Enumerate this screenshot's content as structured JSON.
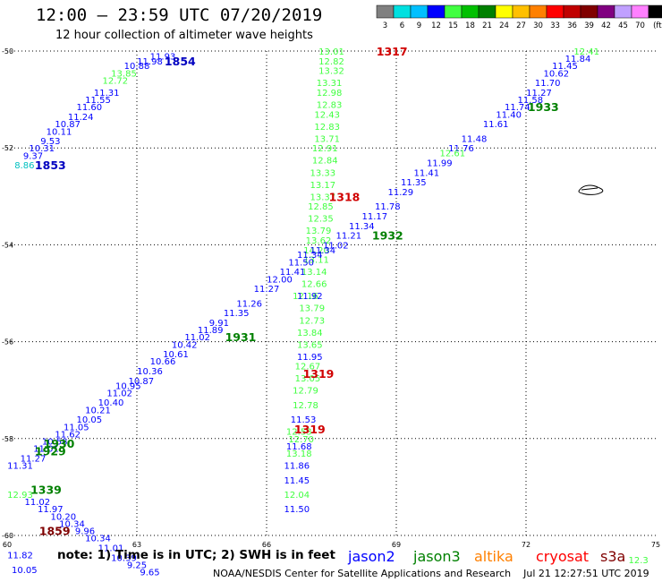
{
  "title": "12:00 – 23:59 UTC 07/20/2019",
  "subtitle": "12 hour collection of altimeter wave heights",
  "note": "note: 1) Time is in UTC; 2) SWH is in feet",
  "credit": "NOAA/NESDIS Center for Satellite Applications and Research    Jul 21 12:27:51 UTC 2019",
  "color_scale": {
    "labels": [
      "3",
      "6",
      "9",
      "12",
      "15",
      "18",
      "21",
      "24",
      "27",
      "30",
      "33",
      "36",
      "39",
      "42",
      "45",
      "70",
      "(ft)"
    ],
    "colors": [
      "#808080",
      "#00e0e0",
      "#00c0ff",
      "#0000ff",
      "#40ff40",
      "#00c000",
      "#008000",
      "#ffff00",
      "#ffc000",
      "#ff8000",
      "#ff0000",
      "#c00000",
      "#800000",
      "#800080",
      "#c0a0ff",
      "#ff80ff",
      "#000000"
    ]
  },
  "legend": [
    {
      "name": "jason2",
      "color": "#0000ff"
    },
    {
      "name": "jason3",
      "color": "#008000"
    },
    {
      "name": "altika",
      "color": "#ff8000"
    },
    {
      "name": "cryosat",
      "color": "#ff0000"
    },
    {
      "name": "s3a",
      "color": "#800000"
    }
  ],
  "chart_data": {
    "type": "scatter",
    "xlim": [
      60,
      75
    ],
    "ylim": [
      -60,
      -50
    ],
    "xticks": [
      60,
      63,
      66,
      69,
      72,
      75
    ],
    "yticks": [
      -50,
      -52,
      -54,
      -56,
      -58,
      -60
    ],
    "grid": true,
    "track_labels": [
      {
        "text": "1854",
        "x": 64.0,
        "y": -50.2,
        "color": "#0000c0"
      },
      {
        "text": "1853",
        "x": 61.0,
        "y": -52.35,
        "color": "#0000c0"
      },
      {
        "text": "1317",
        "x": 68.9,
        "y": -50.0,
        "color": "#d00000"
      },
      {
        "text": "1933",
        "x": 72.4,
        "y": -51.15,
        "color": "#008000"
      },
      {
        "text": "1318",
        "x": 67.8,
        "y": -53.0,
        "color": "#d00000"
      },
      {
        "text": "1932",
        "x": 68.8,
        "y": -53.8,
        "color": "#008000"
      },
      {
        "text": "1931",
        "x": 65.4,
        "y": -55.9,
        "color": "#008000"
      },
      {
        "text": "1319",
        "x": 67.2,
        "y": -56.65,
        "color": "#d00000"
      },
      {
        "text": "1319",
        "x": 67.0,
        "y": -57.8,
        "color": "#d00000"
      },
      {
        "text": "1930",
        "x": 61.2,
        "y": -58.1,
        "color": "#008000"
      },
      {
        "text": "1929",
        "x": 61.0,
        "y": -58.25,
        "color": "#008000"
      },
      {
        "text": "1339",
        "x": 60.9,
        "y": -59.05,
        "color": "#008000"
      },
      {
        "text": "1859",
        "x": 61.1,
        "y": -59.9,
        "color": "#800000"
      }
    ],
    "points": [
      {
        "x": 63.6,
        "y": -50.1,
        "v": "11.93",
        "c": "#0000ff"
      },
      {
        "x": 63.3,
        "y": -50.2,
        "v": "11.98",
        "c": "#0000ff"
      },
      {
        "x": 63.0,
        "y": -50.3,
        "v": "10.88",
        "c": "#0000ff"
      },
      {
        "x": 62.7,
        "y": -50.45,
        "v": "13.85",
        "c": "#40ff40"
      },
      {
        "x": 62.5,
        "y": -50.6,
        "v": "12.72",
        "c": "#40ff40"
      },
      {
        "x": 62.3,
        "y": -50.85,
        "v": "11.31",
        "c": "#0000ff"
      },
      {
        "x": 62.1,
        "y": -51.0,
        "v": "11.55",
        "c": "#0000ff"
      },
      {
        "x": 61.9,
        "y": -51.15,
        "v": "11.60",
        "c": "#0000ff"
      },
      {
        "x": 61.7,
        "y": -51.35,
        "v": "11.24",
        "c": "#0000ff"
      },
      {
        "x": 61.4,
        "y": -51.5,
        "v": "10.87",
        "c": "#0000ff"
      },
      {
        "x": 61.2,
        "y": -51.65,
        "v": "10.11",
        "c": "#0000ff"
      },
      {
        "x": 61.0,
        "y": -51.85,
        "v": "9.53",
        "c": "#0000ff"
      },
      {
        "x": 60.8,
        "y": -52.0,
        "v": "10.31",
        "c": "#0000ff"
      },
      {
        "x": 60.6,
        "y": -52.15,
        "v": "9.37",
        "c": "#0000ff"
      },
      {
        "x": 60.4,
        "y": -52.35,
        "v": "8.86",
        "c": "#00c0c0"
      },
      {
        "x": 67.5,
        "y": -50.0,
        "v": "13.01",
        "c": "#40ff40"
      },
      {
        "x": 67.5,
        "y": -50.2,
        "v": "12.82",
        "c": "#40ff40"
      },
      {
        "x": 67.5,
        "y": -50.4,
        "v": "13.32",
        "c": "#40ff40"
      },
      {
        "x": 67.45,
        "y": -50.65,
        "v": "13.31",
        "c": "#40ff40"
      },
      {
        "x": 67.45,
        "y": -50.85,
        "v": "12.98",
        "c": "#40ff40"
      },
      {
        "x": 67.45,
        "y": -51.1,
        "v": "12.83",
        "c": "#40ff40"
      },
      {
        "x": 67.4,
        "y": -51.3,
        "v": "12.43",
        "c": "#40ff40"
      },
      {
        "x": 67.4,
        "y": -51.55,
        "v": "12.83",
        "c": "#40ff40"
      },
      {
        "x": 67.4,
        "y": -51.8,
        "v": "13.71",
        "c": "#40ff40"
      },
      {
        "x": 67.35,
        "y": -52.0,
        "v": "12.91",
        "c": "#40ff40"
      },
      {
        "x": 67.35,
        "y": -52.25,
        "v": "12.84",
        "c": "#40ff40"
      },
      {
        "x": 67.3,
        "y": -52.5,
        "v": "13.33",
        "c": "#40ff40"
      },
      {
        "x": 67.3,
        "y": -52.75,
        "v": "13.17",
        "c": "#40ff40"
      },
      {
        "x": 67.3,
        "y": -53.0,
        "v": "13.37",
        "c": "#40ff40"
      },
      {
        "x": 67.25,
        "y": -53.2,
        "v": "12.85",
        "c": "#40ff40"
      },
      {
        "x": 67.25,
        "y": -53.45,
        "v": "12.35",
        "c": "#40ff40"
      },
      {
        "x": 67.2,
        "y": -53.7,
        "v": "13.79",
        "c": "#40ff40"
      },
      {
        "x": 67.2,
        "y": -53.9,
        "v": "13.62",
        "c": "#40ff40"
      },
      {
        "x": 67.15,
        "y": -54.1,
        "v": "14.20",
        "c": "#40ff40"
      },
      {
        "x": 67.15,
        "y": -54.3,
        "v": "13.11",
        "c": "#40ff40"
      },
      {
        "x": 67.1,
        "y": -54.55,
        "v": "13.14",
        "c": "#40ff40"
      },
      {
        "x": 67.1,
        "y": -54.8,
        "v": "12.66",
        "c": "#40ff40"
      },
      {
        "x": 66.9,
        "y": -55.05,
        "v": "12.16",
        "c": "#40ff40"
      },
      {
        "x": 67.05,
        "y": -55.3,
        "v": "13.79",
        "c": "#40ff40"
      },
      {
        "x": 67.05,
        "y": -55.55,
        "v": "12.73",
        "c": "#40ff40"
      },
      {
        "x": 67.0,
        "y": -55.8,
        "v": "13.84",
        "c": "#40ff40"
      },
      {
        "x": 67.0,
        "y": -56.05,
        "v": "13.65",
        "c": "#40ff40"
      },
      {
        "x": 66.95,
        "y": -56.5,
        "v": "12.67",
        "c": "#40ff40"
      },
      {
        "x": 66.95,
        "y": -56.75,
        "v": "13.05",
        "c": "#40ff40"
      },
      {
        "x": 66.9,
        "y": -57.0,
        "v": "12.79",
        "c": "#40ff40"
      },
      {
        "x": 66.9,
        "y": -57.3,
        "v": "12.78",
        "c": "#40ff40"
      },
      {
        "x": 66.75,
        "y": -57.85,
        "v": "12.53",
        "c": "#40ff40"
      },
      {
        "x": 66.8,
        "y": -58.0,
        "v": "12.70",
        "c": "#40ff40"
      },
      {
        "x": 66.75,
        "y": -58.3,
        "v": "13.18",
        "c": "#40ff40"
      },
      {
        "x": 66.7,
        "y": -59.15,
        "v": "12.04",
        "c": "#40ff40"
      },
      {
        "x": 66.85,
        "y": -57.6,
        "v": "11.53",
        "c": "#0000ff"
      },
      {
        "x": 66.75,
        "y": -58.15,
        "v": "11.68",
        "c": "#0000ff"
      },
      {
        "x": 66.7,
        "y": -58.55,
        "v": "11.86",
        "c": "#0000ff"
      },
      {
        "x": 66.7,
        "y": -58.85,
        "v": "11.45",
        "c": "#0000ff"
      },
      {
        "x": 66.7,
        "y": -59.45,
        "v": "11.50",
        "c": "#0000ff"
      },
      {
        "x": 67.0,
        "y": -56.3,
        "v": "11.95",
        "c": "#0000ff"
      },
      {
        "x": 67.0,
        "y": -55.05,
        "v": "11.92",
        "c": "#0000ff"
      },
      {
        "x": 73.4,
        "y": -50.0,
        "v": "12.41",
        "c": "#40ff40"
      },
      {
        "x": 73.2,
        "y": -50.15,
        "v": "11.84",
        "c": "#0000ff"
      },
      {
        "x": 72.9,
        "y": -50.3,
        "v": "11.45",
        "c": "#0000ff"
      },
      {
        "x": 72.7,
        "y": -50.45,
        "v": "10.62",
        "c": "#0000ff"
      },
      {
        "x": 72.5,
        "y": -50.65,
        "v": "11.70",
        "c": "#0000ff"
      },
      {
        "x": 72.3,
        "y": -50.85,
        "v": "11.27",
        "c": "#0000ff"
      },
      {
        "x": 72.1,
        "y": -51.0,
        "v": "11.58",
        "c": "#0000ff"
      },
      {
        "x": 71.8,
        "y": -51.15,
        "v": "11.74",
        "c": "#0000ff"
      },
      {
        "x": 71.6,
        "y": -51.3,
        "v": "11.40",
        "c": "#0000ff"
      },
      {
        "x": 71.3,
        "y": -51.5,
        "v": "11.61",
        "c": "#0000ff"
      },
      {
        "x": 70.8,
        "y": -51.8,
        "v": "11.48",
        "c": "#0000ff"
      },
      {
        "x": 70.5,
        "y": -52.0,
        "v": "11.76",
        "c": "#0000ff"
      },
      {
        "x": 70.3,
        "y": -52.1,
        "v": "12.61",
        "c": "#40ff40"
      },
      {
        "x": 70.0,
        "y": -52.3,
        "v": "11.99",
        "c": "#0000ff"
      },
      {
        "x": 69.7,
        "y": -52.5,
        "v": "11.41",
        "c": "#0000ff"
      },
      {
        "x": 69.4,
        "y": -52.7,
        "v": "11.35",
        "c": "#0000ff"
      },
      {
        "x": 69.1,
        "y": -52.9,
        "v": "11.29",
        "c": "#0000ff"
      },
      {
        "x": 68.8,
        "y": -53.2,
        "v": "11.78",
        "c": "#0000ff"
      },
      {
        "x": 68.5,
        "y": -53.4,
        "v": "11.17",
        "c": "#0000ff"
      },
      {
        "x": 68.2,
        "y": -53.6,
        "v": "11.34",
        "c": "#0000ff"
      },
      {
        "x": 67.9,
        "y": -53.8,
        "v": "11.21",
        "c": "#0000ff"
      },
      {
        "x": 67.6,
        "y": -54.0,
        "v": "11.02",
        "c": "#0000ff"
      },
      {
        "x": 67.3,
        "y": -54.1,
        "v": "11.34",
        "c": "#0000ff"
      },
      {
        "x": 67.0,
        "y": -54.2,
        "v": "11.34",
        "c": "#0000ff"
      },
      {
        "x": 66.8,
        "y": -54.35,
        "v": "11.50",
        "c": "#0000ff"
      },
      {
        "x": 66.6,
        "y": -54.55,
        "v": "11.41",
        "c": "#0000ff"
      },
      {
        "x": 66.3,
        "y": -54.7,
        "v": "12.00",
        "c": "#0000ff"
      },
      {
        "x": 66.0,
        "y": -54.9,
        "v": "11.27",
        "c": "#0000ff"
      },
      {
        "x": 65.6,
        "y": -55.2,
        "v": "11.26",
        "c": "#0000ff"
      },
      {
        "x": 65.3,
        "y": -55.4,
        "v": "11.35",
        "c": "#0000ff"
      },
      {
        "x": 64.9,
        "y": -55.6,
        "v": "9.91",
        "c": "#0000ff"
      },
      {
        "x": 64.7,
        "y": -55.75,
        "v": "11.89",
        "c": "#0000ff"
      },
      {
        "x": 64.4,
        "y": -55.9,
        "v": "11.02",
        "c": "#0000ff"
      },
      {
        "x": 64.1,
        "y": -56.05,
        "v": "10.42",
        "c": "#0000ff"
      },
      {
        "x": 63.9,
        "y": -56.25,
        "v": "10.61",
        "c": "#0000ff"
      },
      {
        "x": 63.6,
        "y": -56.4,
        "v": "10.66",
        "c": "#0000ff"
      },
      {
        "x": 63.3,
        "y": -56.6,
        "v": "10.36",
        "c": "#0000ff"
      },
      {
        "x": 63.1,
        "y": -56.8,
        "v": "10.87",
        "c": "#0000ff"
      },
      {
        "x": 62.8,
        "y": -56.9,
        "v": "10.95",
        "c": "#0000ff"
      },
      {
        "x": 62.6,
        "y": -57.05,
        "v": "11.02",
        "c": "#0000ff"
      },
      {
        "x": 62.4,
        "y": -57.25,
        "v": "10.40",
        "c": "#0000ff"
      },
      {
        "x": 62.1,
        "y": -57.4,
        "v": "10.21",
        "c": "#0000ff"
      },
      {
        "x": 61.9,
        "y": -57.6,
        "v": "10.05",
        "c": "#0000ff"
      },
      {
        "x": 61.6,
        "y": -57.75,
        "v": "11.05",
        "c": "#0000ff"
      },
      {
        "x": 61.4,
        "y": -57.9,
        "v": "11.62",
        "c": "#0000ff"
      },
      {
        "x": 61.1,
        "y": -58.05,
        "v": "10.58",
        "c": "#0000ff"
      },
      {
        "x": 60.9,
        "y": -58.2,
        "v": "11.01",
        "c": "#0000ff"
      },
      {
        "x": 60.6,
        "y": -58.4,
        "v": "11.27",
        "c": "#0000ff"
      },
      {
        "x": 60.3,
        "y": -58.55,
        "v": "11.31",
        "c": "#0000ff"
      },
      {
        "x": 60.3,
        "y": -59.15,
        "v": "12.93",
        "c": "#40ff40"
      },
      {
        "x": 60.7,
        "y": -59.3,
        "v": "11.02",
        "c": "#0000ff"
      },
      {
        "x": 61.0,
        "y": -59.45,
        "v": "11.97",
        "c": "#0000ff"
      },
      {
        "x": 61.3,
        "y": -59.6,
        "v": "10.20",
        "c": "#0000ff"
      },
      {
        "x": 61.5,
        "y": -59.75,
        "v": "10.34",
        "c": "#0000ff"
      },
      {
        "x": 61.8,
        "y": -59.9,
        "v": "9.96",
        "c": "#0000ff"
      },
      {
        "x": 62.1,
        "y": -60.05,
        "v": "10.34",
        "c": "#0000ff"
      },
      {
        "x": 62.4,
        "y": -60.25,
        "v": "11.01",
        "c": "#0000ff"
      },
      {
        "x": 62.7,
        "y": -60.45,
        "v": "10.39",
        "c": "#0000ff"
      },
      {
        "x": 63.0,
        "y": -60.6,
        "v": "9.25",
        "c": "#0000ff"
      },
      {
        "x": 63.3,
        "y": -60.75,
        "v": "9.65",
        "c": "#0000ff"
      },
      {
        "x": 60.3,
        "y": -60.4,
        "v": "11.82",
        "c": "#0000ff"
      },
      {
        "x": 60.4,
        "y": -60.7,
        "v": "10.05",
        "c": "#0000ff"
      },
      {
        "x": 74.6,
        "y": -60.5,
        "v": "12.3",
        "c": "#40ff40"
      }
    ]
  }
}
